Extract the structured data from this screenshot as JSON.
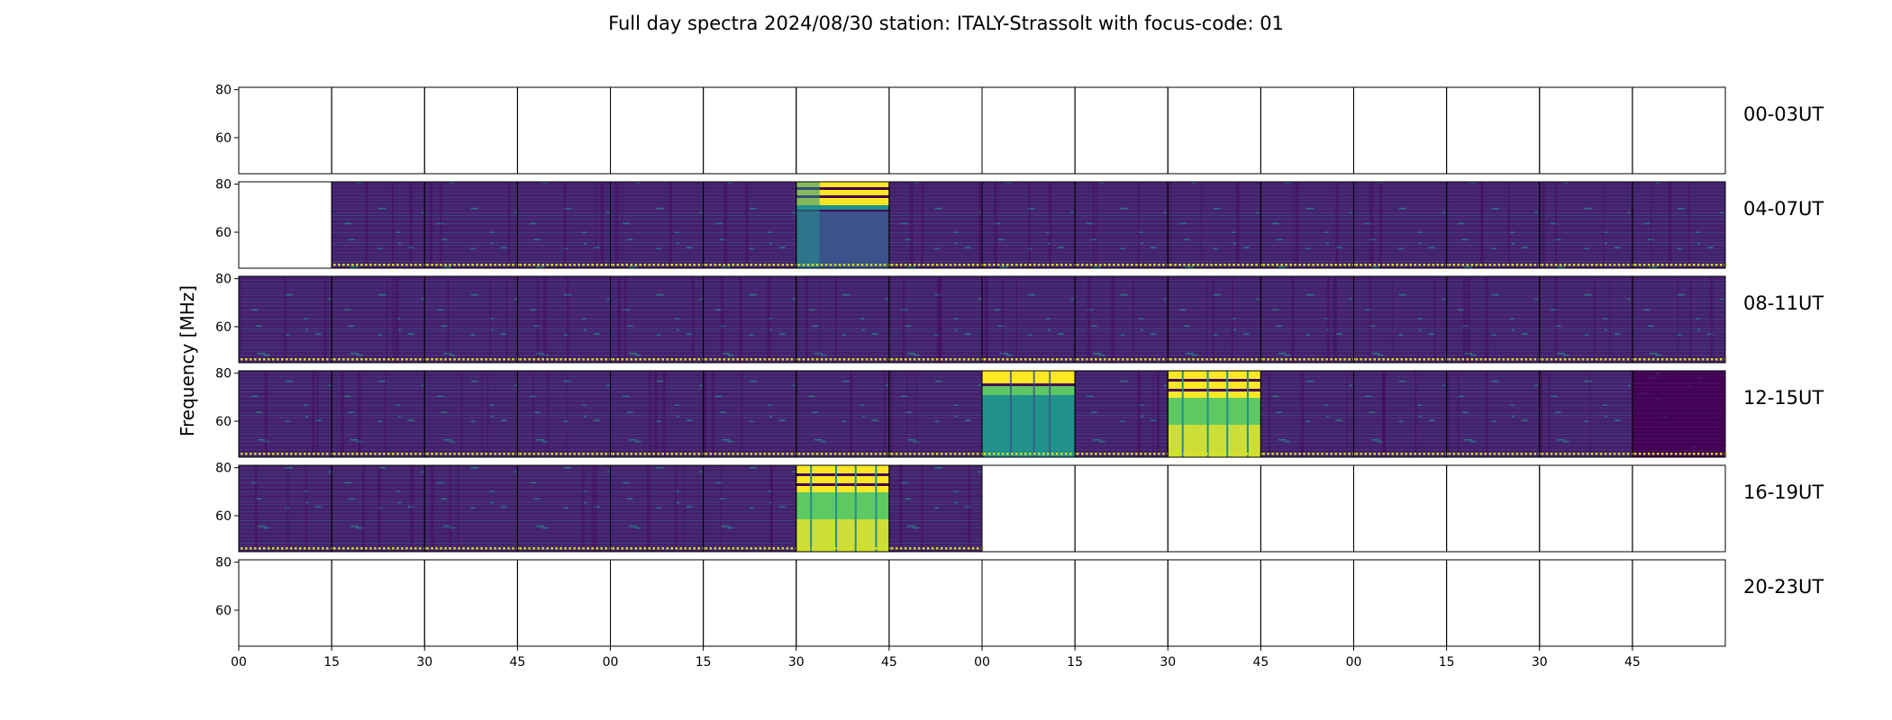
{
  "chart_data": {
    "type": "heatmap",
    "title": "Full day spectra 2024/08/30 station: ITALY-Strassolt with focus-code: 01",
    "ylabel": "Frequency [MHz]",
    "ylim": [
      45,
      81
    ],
    "y_ticks": [
      "60",
      "80"
    ],
    "x_ticks": [
      "00",
      "15",
      "30",
      "45",
      "00",
      "15",
      "30",
      "45",
      "00",
      "15",
      "30",
      "45",
      "00",
      "15",
      "30",
      "45"
    ],
    "colormap": "viridis",
    "colors": {
      "dark": "#440154",
      "purple": "#46206c",
      "blue": "#3b528b",
      "teal": "#21918c",
      "green": "#5ec962",
      "yellow": "#fde725",
      "marker": "#d8e219"
    },
    "rows": [
      {
        "label": "00-03UT",
        "cells": [
          "empty",
          "empty",
          "empty",
          "empty",
          "empty",
          "empty",
          "empty",
          "empty",
          "empty",
          "empty",
          "empty",
          "empty",
          "empty",
          "empty",
          "empty",
          "empty"
        ]
      },
      {
        "label": "04-07UT",
        "cells": [
          "empty",
          "normal",
          "normal",
          "normal",
          "normal",
          "normal",
          "burst-top",
          "normal",
          "normal",
          "normal",
          "normal",
          "normal",
          "normal",
          "normal",
          "normal",
          "normal"
        ]
      },
      {
        "label": "08-11UT",
        "cells": [
          "normal",
          "normal",
          "normal",
          "normal",
          "normal",
          "normal",
          "normal",
          "normal",
          "normal",
          "normal",
          "normal",
          "normal",
          "normal",
          "normal",
          "normal",
          "normal"
        ]
      },
      {
        "label": "12-15UT",
        "cells": [
          "normal",
          "normal",
          "normal",
          "normal",
          "normal",
          "normal",
          "normal",
          "normal",
          "burst-teal",
          "normal",
          "burst-full",
          "normal",
          "normal",
          "normal",
          "normal",
          "dark"
        ]
      },
      {
        "label": "16-19UT",
        "cells": [
          "normal",
          "normal",
          "normal",
          "normal",
          "normal",
          "normal",
          "burst-full",
          "normal",
          "empty",
          "empty",
          "empty",
          "empty",
          "empty",
          "empty",
          "empty",
          "empty"
        ]
      },
      {
        "label": "20-23UT",
        "cells": [
          "empty",
          "empty",
          "empty",
          "empty",
          "empty",
          "empty",
          "empty",
          "empty",
          "empty",
          "empty",
          "empty",
          "empty",
          "empty",
          "empty",
          "empty",
          "empty"
        ]
      }
    ]
  }
}
